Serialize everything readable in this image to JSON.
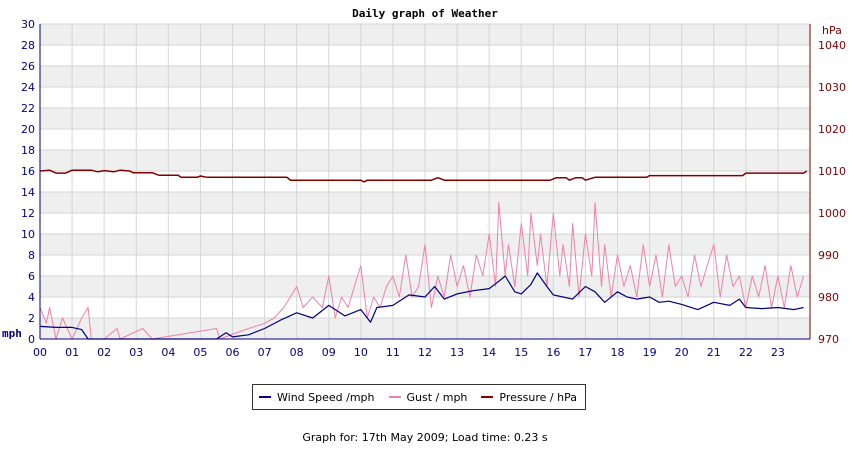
{
  "chart_data": {
    "type": "line",
    "title": "Daily graph of Weather",
    "y_left": {
      "unit": "mph",
      "range": [
        0,
        30
      ],
      "ticks": [
        0,
        2,
        4,
        6,
        8,
        10,
        12,
        14,
        16,
        18,
        20,
        22,
        24,
        26,
        28,
        30
      ]
    },
    "y_right": {
      "unit": "hPa",
      "range": [
        970,
        1045
      ],
      "ticks": [
        970,
        980,
        990,
        1000,
        1010,
        1020,
        1030,
        1040
      ]
    },
    "x": {
      "range": [
        0,
        24
      ],
      "tick_labels": [
        "00",
        "01",
        "02",
        "03",
        "04",
        "05",
        "06",
        "07",
        "08",
        "09",
        "10",
        "11",
        "12",
        "13",
        "14",
        "15",
        "16",
        "17",
        "18",
        "19",
        "20",
        "21",
        "22",
        "23"
      ]
    },
    "grid": true,
    "legend_position": "bottom-center",
    "series": [
      {
        "name": "Wind Speed /mph",
        "axis": "left",
        "color": "#000080",
        "points": [
          [
            0,
            1.2
          ],
          [
            0.5,
            1.1
          ],
          [
            1,
            1.1
          ],
          [
            1.3,
            0.9
          ],
          [
            1.5,
            0
          ],
          [
            2,
            0
          ],
          [
            3,
            0
          ],
          [
            4,
            0
          ],
          [
            5,
            0
          ],
          [
            5.5,
            0
          ],
          [
            5.8,
            0.6
          ],
          [
            6,
            0.2
          ],
          [
            6.5,
            0.4
          ],
          [
            7,
            1
          ],
          [
            7.5,
            1.8
          ],
          [
            8,
            2.5
          ],
          [
            8.5,
            2.0
          ],
          [
            9,
            3.2
          ],
          [
            9.5,
            2.2
          ],
          [
            10,
            2.8
          ],
          [
            10.3,
            1.6
          ],
          [
            10.5,
            3.0
          ],
          [
            11,
            3.2
          ],
          [
            11.5,
            4.2
          ],
          [
            12,
            4.0
          ],
          [
            12.3,
            5.0
          ],
          [
            12.6,
            3.8
          ],
          [
            13,
            4.3
          ],
          [
            13.5,
            4.6
          ],
          [
            14,
            4.8
          ],
          [
            14.3,
            5.5
          ],
          [
            14.5,
            6.0
          ],
          [
            14.8,
            4.5
          ],
          [
            15,
            4.3
          ],
          [
            15.3,
            5.2
          ],
          [
            15.5,
            6.3
          ],
          [
            15.8,
            5.0
          ],
          [
            16,
            4.2
          ],
          [
            16.3,
            4.0
          ],
          [
            16.6,
            3.8
          ],
          [
            17,
            5.0
          ],
          [
            17.3,
            4.5
          ],
          [
            17.6,
            3.5
          ],
          [
            18,
            4.5
          ],
          [
            18.3,
            4.0
          ],
          [
            18.6,
            3.8
          ],
          [
            19,
            4.0
          ],
          [
            19.3,
            3.5
          ],
          [
            19.6,
            3.6
          ],
          [
            20,
            3.3
          ],
          [
            20.5,
            2.8
          ],
          [
            21,
            3.5
          ],
          [
            21.5,
            3.2
          ],
          [
            21.8,
            3.8
          ],
          [
            22,
            3.0
          ],
          [
            22.5,
            2.9
          ],
          [
            23,
            3.0
          ],
          [
            23.5,
            2.8
          ],
          [
            23.8,
            3.0
          ]
        ]
      },
      {
        "name": "Gust / mph",
        "axis": "left",
        "color": "#f080a8",
        "points": [
          [
            0,
            3
          ],
          [
            0.2,
            1.5
          ],
          [
            0.3,
            3
          ],
          [
            0.5,
            0
          ],
          [
            0.7,
            2
          ],
          [
            1,
            0
          ],
          [
            1.3,
            2
          ],
          [
            1.5,
            3
          ],
          [
            1.6,
            0
          ],
          [
            2,
            0
          ],
          [
            2.4,
            1
          ],
          [
            2.5,
            0
          ],
          [
            3.2,
            1
          ],
          [
            3.5,
            0
          ],
          [
            5.5,
            1
          ],
          [
            5.6,
            0
          ],
          [
            6.5,
            1
          ],
          [
            7,
            1.5
          ],
          [
            7.3,
            2
          ],
          [
            7.6,
            3
          ],
          [
            7.8,
            4
          ],
          [
            8,
            5
          ],
          [
            8.2,
            3
          ],
          [
            8.5,
            4
          ],
          [
            8.8,
            3
          ],
          [
            9,
            6
          ],
          [
            9.2,
            2
          ],
          [
            9.4,
            4
          ],
          [
            9.6,
            3
          ],
          [
            9.8,
            5
          ],
          [
            10,
            7
          ],
          [
            10.2,
            2
          ],
          [
            10.4,
            4
          ],
          [
            10.6,
            3
          ],
          [
            10.8,
            5
          ],
          [
            11,
            6
          ],
          [
            11.2,
            4
          ],
          [
            11.4,
            8
          ],
          [
            11.6,
            4
          ],
          [
            11.8,
            5
          ],
          [
            12,
            9
          ],
          [
            12.2,
            3
          ],
          [
            12.4,
            6
          ],
          [
            12.6,
            4
          ],
          [
            12.8,
            8
          ],
          [
            13,
            5
          ],
          [
            13.2,
            7
          ],
          [
            13.4,
            4
          ],
          [
            13.6,
            8
          ],
          [
            13.8,
            6
          ],
          [
            14,
            10
          ],
          [
            14.2,
            5
          ],
          [
            14.3,
            13
          ],
          [
            14.5,
            6
          ],
          [
            14.6,
            9
          ],
          [
            14.8,
            5
          ],
          [
            15,
            11
          ],
          [
            15.2,
            6
          ],
          [
            15.3,
            12
          ],
          [
            15.5,
            7
          ],
          [
            15.6,
            10
          ],
          [
            15.8,
            5
          ],
          [
            16,
            12
          ],
          [
            16.2,
            6
          ],
          [
            16.3,
            9
          ],
          [
            16.5,
            5
          ],
          [
            16.6,
            11
          ],
          [
            16.8,
            4
          ],
          [
            17,
            10
          ],
          [
            17.2,
            6
          ],
          [
            17.3,
            13
          ],
          [
            17.5,
            5
          ],
          [
            17.6,
            9
          ],
          [
            17.8,
            4
          ],
          [
            18,
            8
          ],
          [
            18.2,
            5
          ],
          [
            18.4,
            7
          ],
          [
            18.6,
            4
          ],
          [
            18.8,
            9
          ],
          [
            19,
            5
          ],
          [
            19.2,
            8
          ],
          [
            19.4,
            4
          ],
          [
            19.6,
            9
          ],
          [
            19.8,
            5
          ],
          [
            20,
            6
          ],
          [
            20.2,
            4
          ],
          [
            20.4,
            8
          ],
          [
            20.6,
            5
          ],
          [
            20.8,
            7
          ],
          [
            21,
            9
          ],
          [
            21.2,
            4
          ],
          [
            21.4,
            8
          ],
          [
            21.6,
            5
          ],
          [
            21.8,
            6
          ],
          [
            22,
            3
          ],
          [
            22.2,
            6
          ],
          [
            22.4,
            4
          ],
          [
            22.6,
            7
          ],
          [
            22.8,
            3
          ],
          [
            23,
            6
          ],
          [
            23.2,
            3
          ],
          [
            23.4,
            7
          ],
          [
            23.6,
            4
          ],
          [
            23.8,
            6
          ]
        ]
      },
      {
        "name": "Pressure / hPa",
        "axis": "right",
        "color": "#800000",
        "points": [
          [
            0,
            1010
          ],
          [
            0.3,
            1010.2
          ],
          [
            0.5,
            1009.5
          ],
          [
            0.8,
            1009.5
          ],
          [
            1,
            1010.2
          ],
          [
            1.6,
            1010.2
          ],
          [
            1.8,
            1009.8
          ],
          [
            2,
            1010.1
          ],
          [
            2.3,
            1009.8
          ],
          [
            2.5,
            1010.2
          ],
          [
            2.8,
            1010.0
          ],
          [
            2.9,
            1009.6
          ],
          [
            3.5,
            1009.6
          ],
          [
            3.7,
            1009.0
          ],
          [
            4.3,
            1009.0
          ],
          [
            4.4,
            1008.5
          ],
          [
            4.9,
            1008.5
          ],
          [
            5,
            1008.8
          ],
          [
            5.2,
            1008.5
          ],
          [
            7.7,
            1008.5
          ],
          [
            7.8,
            1007.8
          ],
          [
            10,
            1007.8
          ],
          [
            10.1,
            1007.4
          ],
          [
            10.2,
            1007.8
          ],
          [
            12.2,
            1007.8
          ],
          [
            12.4,
            1008.4
          ],
          [
            12.6,
            1007.8
          ],
          [
            15.9,
            1007.8
          ],
          [
            16.1,
            1008.4
          ],
          [
            16.4,
            1008.4
          ],
          [
            16.5,
            1007.8
          ],
          [
            16.7,
            1008.4
          ],
          [
            16.9,
            1008.4
          ],
          [
            17,
            1007.8
          ],
          [
            17.3,
            1008.5
          ],
          [
            18.9,
            1008.5
          ],
          [
            19,
            1008.9
          ],
          [
            21.9,
            1008.9
          ],
          [
            22,
            1009.5
          ],
          [
            23.8,
            1009.5
          ],
          [
            23.9,
            1010
          ]
        ]
      }
    ],
    "legend_items": [
      {
        "label": "Wind Speed /mph",
        "color": "#000080"
      },
      {
        "label": "Gust / mph",
        "color": "#f080a8"
      },
      {
        "label": "Pressure / hPa",
        "color": "#800000"
      }
    ]
  },
  "footer_text": "Graph for: 17th May 2009; Load time: 0.23 s"
}
